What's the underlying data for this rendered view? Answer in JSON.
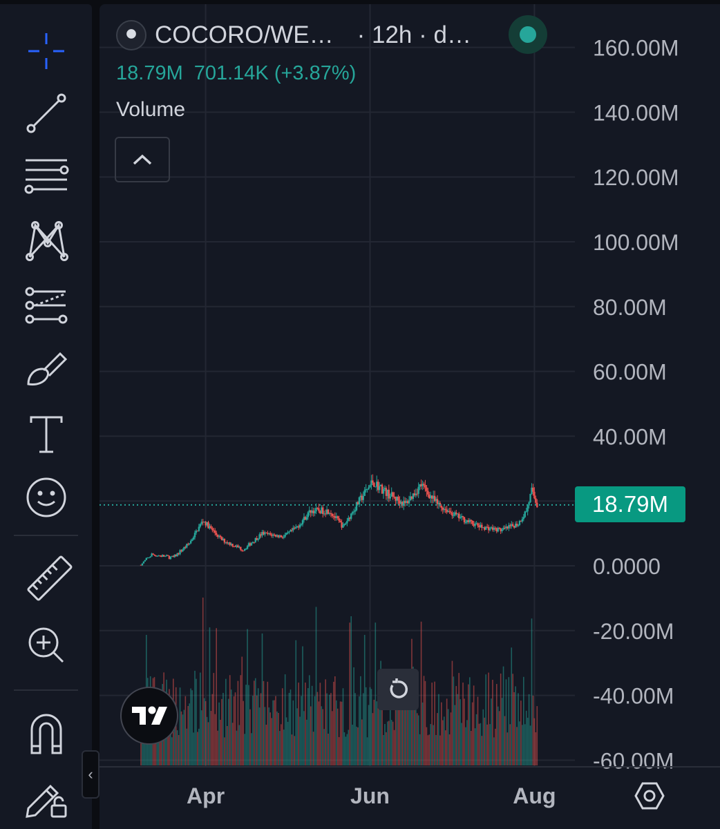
{
  "header": {
    "pair": "COCORO/WE…",
    "interval": "· 12h · d…",
    "last_value": "18.79M",
    "change": "701.14K (+3.87%)",
    "indicator": "Volume"
  },
  "price_badge": "18.79M",
  "colors": {
    "up": "#26a69a",
    "down": "#ef5350",
    "accent": "#2962ff",
    "badge": "#089981",
    "background": "#141823"
  },
  "toolbar": {
    "tools": [
      "crosshair-icon",
      "trend-line-icon",
      "fib-retracement-icon",
      "pattern-icon",
      "prediction-icon",
      "brush-icon",
      "text-icon",
      "emoji-icon",
      "ruler-icon",
      "zoom-in-icon",
      "magnet-icon",
      "lock-drawings-icon"
    ]
  },
  "chart_data": {
    "type": "candlestick",
    "title": "COCORO/WE… · 12h · d…",
    "x_ticks": [
      "Apr",
      "Jun",
      "Aug"
    ],
    "y_ticks": [
      "160.00M",
      "140.00M",
      "120.00M",
      "100.00M",
      "80.00M",
      "60.00M",
      "40.00M",
      "20.00M",
      "0.0000",
      "-20.00M",
      "-40.00M",
      "-60.00M"
    ],
    "ylim": [
      -60,
      160
    ],
    "y_unit": "M",
    "last_value": 18.79,
    "grid": true,
    "price_key_points": [
      {
        "date": "2025-03-08",
        "value": 0.3
      },
      {
        "date": "2025-03-12",
        "value": 3.5
      },
      {
        "date": "2025-03-20",
        "value": 2.5
      },
      {
        "date": "2025-03-26",
        "value": 7
      },
      {
        "date": "2025-03-31",
        "value": 14
      },
      {
        "date": "2025-04-07",
        "value": 8
      },
      {
        "date": "2025-04-15",
        "value": 5
      },
      {
        "date": "2025-04-22",
        "value": 10
      },
      {
        "date": "2025-04-30",
        "value": 9
      },
      {
        "date": "2025-05-05",
        "value": 12
      },
      {
        "date": "2025-05-10",
        "value": 17
      },
      {
        "date": "2025-05-17",
        "value": 17
      },
      {
        "date": "2025-05-22",
        "value": 12
      },
      {
        "date": "2025-05-28",
        "value": 20
      },
      {
        "date": "2025-06-02",
        "value": 26
      },
      {
        "date": "2025-06-08",
        "value": 22
      },
      {
        "date": "2025-06-14",
        "value": 19
      },
      {
        "date": "2025-06-20",
        "value": 25
      },
      {
        "date": "2025-06-26",
        "value": 19
      },
      {
        "date": "2025-07-04",
        "value": 15
      },
      {
        "date": "2025-07-12",
        "value": 12
      },
      {
        "date": "2025-07-20",
        "value": 11
      },
      {
        "date": "2025-07-26",
        "value": 13
      },
      {
        "date": "2025-07-29",
        "value": 17
      },
      {
        "date": "2025-07-31",
        "value": 23
      },
      {
        "date": "2025-08-02",
        "value": 18.79
      }
    ],
    "volume_spikes": [
      {
        "date": "2025-03-10",
        "relative": 0.7
      },
      {
        "date": "2025-03-31",
        "relative": 0.9
      },
      {
        "date": "2025-05-12",
        "relative": 0.85
      },
      {
        "date": "2025-05-25",
        "relative": 0.8
      },
      {
        "date": "2025-07-31",
        "relative": 1.0
      }
    ]
  }
}
